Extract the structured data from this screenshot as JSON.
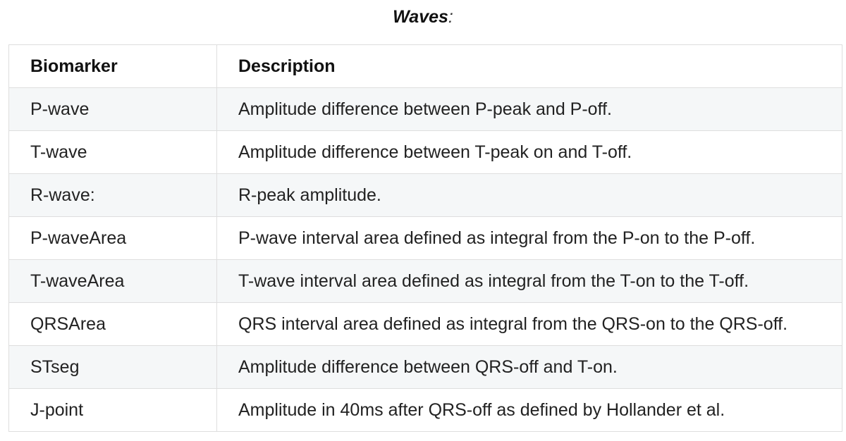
{
  "caption": {
    "title": "Waves",
    "suffix": ":"
  },
  "table": {
    "headers": [
      "Biomarker",
      "Description"
    ],
    "rows": [
      [
        "P-wave",
        "Amplitude difference between P-peak and P-off."
      ],
      [
        "T-wave",
        "Amplitude difference between T-peak on and T-off."
      ],
      [
        "R-wave:",
        "R-peak amplitude."
      ],
      [
        "P-waveArea",
        "P-wave interval area defined as integral from the P-on to the P-off."
      ],
      [
        "T-waveArea",
        "T-wave interval area defined as integral from the T-on to the T-off."
      ],
      [
        "QRSArea",
        "QRS interval area defined as integral from the QRS-on to the QRS-off."
      ],
      [
        "STseg",
        "Amplitude difference between QRS-off and T-on."
      ],
      [
        "J-point",
        "Amplitude in 40ms after QRS-off as defined by Hollander et al."
      ]
    ]
  },
  "colors": {
    "stripe": "#f5f7f8",
    "border": "#dedede",
    "text": "#222222"
  }
}
